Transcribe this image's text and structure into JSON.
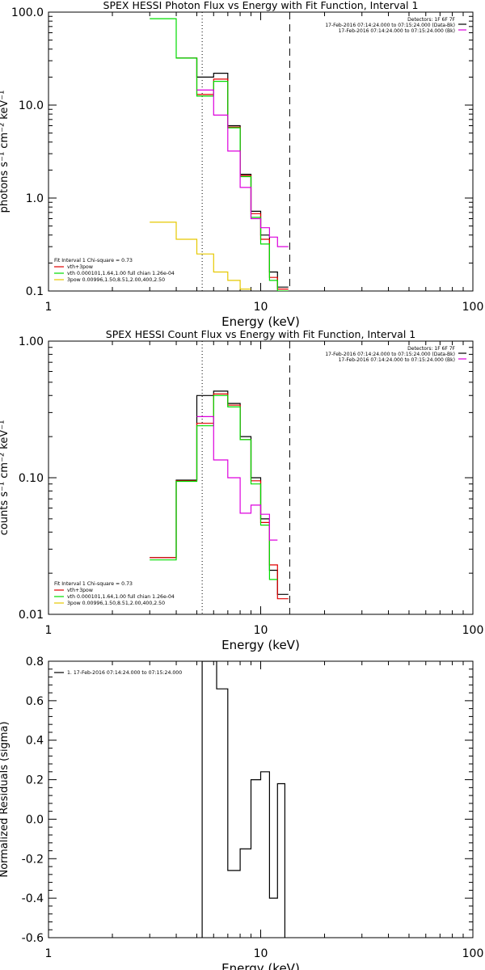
{
  "colors": {
    "data": "#000000",
    "total": "#e00000",
    "thermal": "#00dd00",
    "power": "#dd00dd",
    "nonthermal": "#e6c800",
    "axis": "#000000"
  },
  "chart_data": [
    {
      "type": "line",
      "title": "SPEX HESSI Photon Flux vs Energy with Fit Function, Interval 1",
      "xlabel": "Energy (keV)",
      "ylabel": "photons s⁻¹ cm⁻² keV⁻¹",
      "xscale": "log",
      "yscale": "log",
      "xlim": [
        1,
        100
      ],
      "ylim": [
        0.1,
        100
      ],
      "x_ticks": [
        "1",
        "10",
        "100"
      ],
      "y_ticks": [
        "0.1",
        "1.0",
        "10.0",
        "100.0"
      ],
      "grid": false,
      "bin_edges": [
        3.0,
        4.0,
        5.0,
        6.0,
        7.0,
        8.0,
        9.0,
        10.0,
        11.0,
        12.0,
        13.5
      ],
      "series": [
        {
          "id": "data",
          "color_key": "data",
          "values": [
            null,
            32,
            20,
            22,
            6,
            1.8,
            0.72,
            0.4,
            0.16,
            0.11
          ]
        },
        {
          "id": "total",
          "color_key": "total",
          "values": [
            null,
            32,
            13,
            19,
            5.8,
            1.75,
            0.68,
            0.36,
            0.14,
            0.105
          ]
        },
        {
          "id": "thermal",
          "color_key": "thermal",
          "values": [
            85,
            32,
            12.5,
            18,
            5.7,
            1.7,
            0.62,
            0.32,
            0.13,
            0.1
          ]
        },
        {
          "id": "background",
          "color_key": "power",
          "values": [
            null,
            null,
            14.5,
            7.8,
            3.2,
            1.3,
            0.6,
            0.48,
            0.38,
            0.3
          ]
        },
        {
          "id": "nonthermal",
          "color_key": "nonthermal",
          "values": [
            0.55,
            0.36,
            0.25,
            0.16,
            0.13,
            0.105,
            null,
            null,
            null,
            null
          ]
        }
      ],
      "vlines": [
        {
          "x": 5.3,
          "style": "dotted"
        },
        {
          "x": 13.7,
          "style": "dashed"
        }
      ],
      "legend": {
        "position": "bottom-left",
        "header": "Fit Interval 1    Chi-square = 0.73",
        "entries": [
          {
            "label": "vth+3pow",
            "color_key": "total"
          },
          {
            "label": "vth 0.000101,1.64,1.00   full chian 1.26e-04",
            "color_key": "thermal"
          },
          {
            "label": "3pow 0.00996,1.50,8.51,2.00,400,2.50",
            "color_key": "nonthermal"
          }
        ]
      },
      "annotation": {
        "position": "top-right",
        "lines": [
          {
            "text": "Detectors: 1F 6F 7F",
            "color_key": "axis"
          },
          {
            "text": "17-Feb-2016 07:14:24.000 to 07:15:24.000 (Data-Bk)",
            "color_key": "data"
          },
          {
            "text": "17-Feb-2016 07:14:24.000 to 07:15:24.000 (Bk)",
            "color_key": "power"
          }
        ]
      }
    },
    {
      "type": "line",
      "title": "SPEX HESSI Count Flux vs Energy with Fit Function, Interval 1",
      "xlabel": "Energy (keV)",
      "ylabel": "counts s⁻¹ cm⁻² keV⁻¹",
      "xscale": "log",
      "yscale": "log",
      "xlim": [
        1,
        100
      ],
      "ylim": [
        0.01,
        1
      ],
      "x_ticks": [
        "1",
        "10",
        "100"
      ],
      "y_ticks": [
        "0.01",
        "0.10",
        "1.00"
      ],
      "grid": false,
      "bin_edges": [
        3.0,
        4.0,
        5.0,
        6.0,
        7.0,
        8.0,
        9.0,
        10.0,
        11.0,
        12.0,
        13.5
      ],
      "series": [
        {
          "id": "data",
          "color_key": "data",
          "values": [
            0.026,
            0.096,
            0.4,
            0.43,
            0.35,
            0.2,
            0.1,
            0.05,
            0.021,
            0.014
          ]
        },
        {
          "id": "total",
          "color_key": "total",
          "values": [
            0.026,
            0.095,
            0.25,
            0.41,
            0.34,
            0.19,
            0.095,
            0.047,
            0.023,
            0.013
          ]
        },
        {
          "id": "thermal",
          "color_key": "thermal",
          "values": [
            0.025,
            0.094,
            0.24,
            0.4,
            0.33,
            0.19,
            0.09,
            0.045,
            0.018,
            null
          ]
        },
        {
          "id": "background",
          "color_key": "power",
          "values": [
            null,
            null,
            0.28,
            0.135,
            0.1,
            0.055,
            0.063,
            0.054,
            0.035,
            null
          ]
        }
      ],
      "vlines": [
        {
          "x": 5.3,
          "style": "dotted"
        },
        {
          "x": 13.7,
          "style": "dashed"
        }
      ],
      "legend": {
        "position": "bottom-left",
        "header": "Fit Interval 1    Chi-square = 0.73",
        "entries": [
          {
            "label": "vth+3pow",
            "color_key": "total"
          },
          {
            "label": "vth 0.000101,1.64,1.00   full chian 1.26e-04",
            "color_key": "thermal"
          },
          {
            "label": "3pow 0.00996,1.50,8.51,2.00,400,2.50",
            "color_key": "nonthermal"
          }
        ]
      },
      "annotation": {
        "position": "top-right",
        "lines": [
          {
            "text": "Detectors: 1F 6F 7F",
            "color_key": "axis"
          },
          {
            "text": "17-Feb-2016 07:14:24.000 to 07:15:24.000 (Data-Bk)",
            "color_key": "data"
          },
          {
            "text": "17-Feb-2016 07:14:24.000 to 07:15:24.000 (Bk)",
            "color_key": "power"
          }
        ]
      }
    },
    {
      "type": "line",
      "title": "",
      "xlabel": "Energy (keV)",
      "ylabel": "Normalized Residuals (sigma)",
      "xscale": "log",
      "yscale": "linear",
      "xlim": [
        1,
        100
      ],
      "ylim": [
        -0.6,
        0.8
      ],
      "x_ticks": [
        "1",
        "10",
        "100"
      ],
      "y_ticks": [
        "-0.6",
        "-0.4",
        "-0.2",
        "0.0",
        "0.2",
        "0.4",
        "0.6",
        "0.8"
      ],
      "grid": false,
      "bin_edges": [
        5.3,
        6.2,
        7.0,
        8.0,
        9.0,
        10.0,
        11.0,
        12.0,
        13.0,
        13.7
      ],
      "series": [
        {
          "id": "residuals",
          "color_key": "data",
          "values": [
            0.8,
            0.66,
            -0.26,
            -0.15,
            0.2,
            0.24,
            -0.4,
            0.18,
            null
          ],
          "rise_from_bottom": true,
          "drop_to_bottom": true
        }
      ],
      "vlines": [],
      "legend": {
        "position": "top-left",
        "header": "",
        "entries": [
          {
            "label": "1. 17-Feb-2016 07:14:24.000 to 07:15:24.000",
            "color_key": "data"
          }
        ]
      },
      "annotation": {
        "position": "top-right",
        "lines": []
      }
    }
  ]
}
